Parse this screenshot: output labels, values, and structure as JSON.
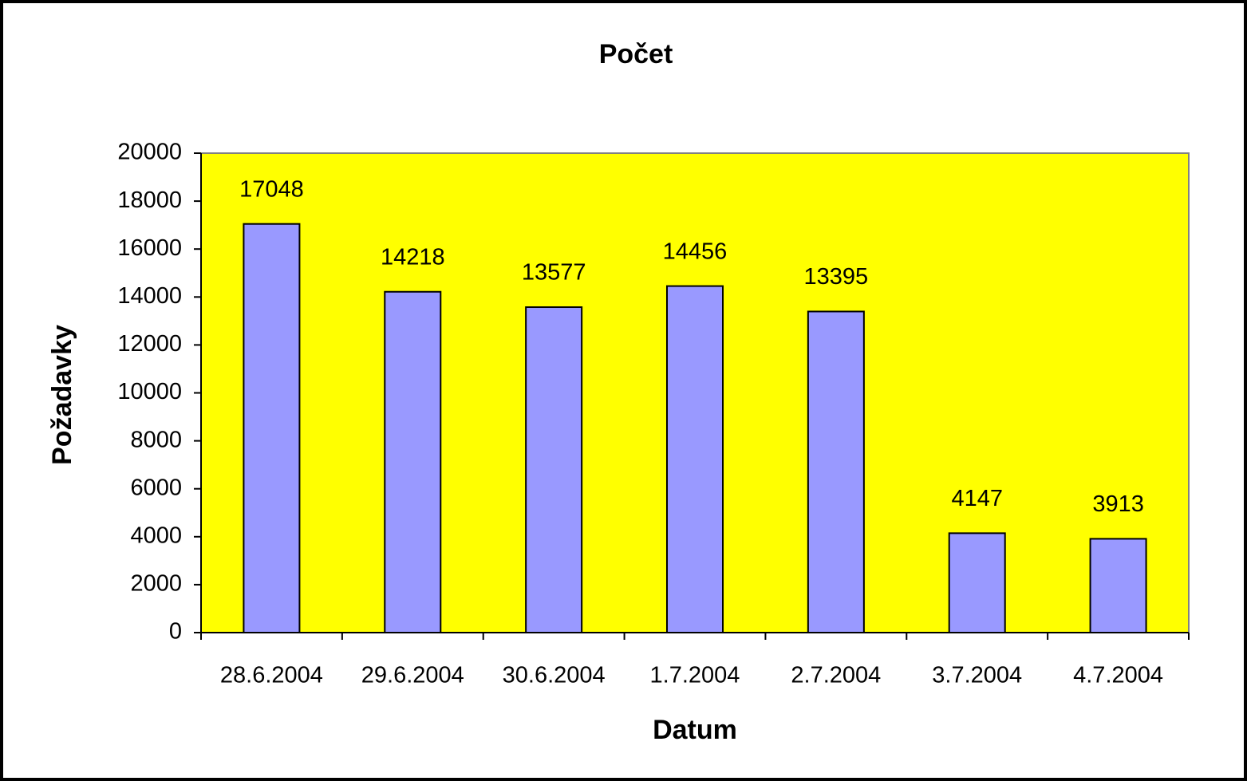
{
  "chart_data": {
    "type": "bar",
    "title": "Počet",
    "x_label": "Datum",
    "y_label": "Požadavky",
    "categories": [
      "28.6.2004",
      "29.6.2004",
      "30.6.2004",
      "1.7.2004",
      "2.7.2004",
      "3.7.2004",
      "4.7.2004"
    ],
    "values": [
      17048,
      14218,
      13577,
      14456,
      13395,
      4147,
      3913
    ],
    "color": "#9999ff",
    "ylim": [
      0,
      20000
    ],
    "yticks": [
      0,
      2000,
      4000,
      6000,
      8000,
      10000,
      12000,
      14000,
      16000,
      18000,
      20000
    ],
    "grid": false
  }
}
